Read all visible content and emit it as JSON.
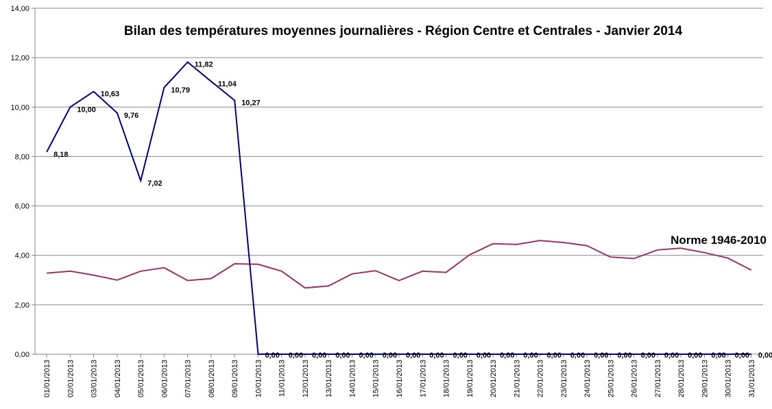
{
  "chart_data": {
    "type": "line",
    "title": "Bilan des températures moyennes journalières - Région Centre et Centrales - Janvier 2014",
    "xlabel": "",
    "ylabel": "",
    "ylim": [
      0,
      14
    ],
    "yticks": [
      "0,00",
      "2,00",
      "4,00",
      "6,00",
      "8,00",
      "10,00",
      "12,00",
      "14,00"
    ],
    "grid": true,
    "categories": [
      "01/01/2013",
      "02/01/2013",
      "03/01/2013",
      "04/01/2013",
      "05/01/2013",
      "06/01/2013",
      "07/01/2013",
      "08/01/2013",
      "09/01/2013",
      "10/01/2013",
      "11/01/2013",
      "12/01/2013",
      "13/01/2013",
      "14/01/2013",
      "15/01/2013",
      "16/01/2013",
      "17/01/2013",
      "18/01/2013",
      "19/01/2013",
      "20/01/2013",
      "21/01/2013",
      "22/01/2013",
      "23/01/2013",
      "24/01/2013",
      "25/01/2013",
      "26/01/2013",
      "27/01/2013",
      "28/01/2013",
      "29/01/2013",
      "30/01/2013",
      "31/01/2013"
    ],
    "series": [
      {
        "color": "#000080",
        "values": [
          8.18,
          10.0,
          10.63,
          9.76,
          7.02,
          10.79,
          11.82,
          11.04,
          10.27,
          0,
          0,
          0,
          0,
          0,
          0,
          0,
          0,
          0,
          0,
          0,
          0,
          0,
          0,
          0,
          0,
          0,
          0,
          0,
          0,
          0,
          0
        ],
        "labels": [
          "8,18",
          "10,00",
          "10,63",
          "9,76",
          "7,02",
          "10,79",
          "11,82",
          "11,04",
          "10,27",
          "0,00",
          "0,00",
          "0,00",
          "0,00",
          "0,00",
          "0,00",
          "0,00",
          "0,00",
          "0,00",
          "0,00",
          "0,00",
          "0,00",
          "0,00",
          "0,00",
          "0,00",
          "0,00",
          "0,00",
          "0,00",
          "0,00",
          "0,00",
          "0,00",
          "0,00"
        ]
      },
      {
        "name": "Norme 1946-2010",
        "color": "#993366",
        "values": [
          3.28,
          3.36,
          3.2,
          3.0,
          3.36,
          3.5,
          2.98,
          3.06,
          3.66,
          3.64,
          3.36,
          2.68,
          2.76,
          3.25,
          3.38,
          2.98,
          3.36,
          3.31,
          4.02,
          4.47,
          4.44,
          4.6,
          4.52,
          4.39,
          3.93,
          3.87,
          4.22,
          4.29,
          4.11,
          3.89,
          3.4
        ]
      }
    ],
    "annotation": "Norme 1946-2010"
  }
}
